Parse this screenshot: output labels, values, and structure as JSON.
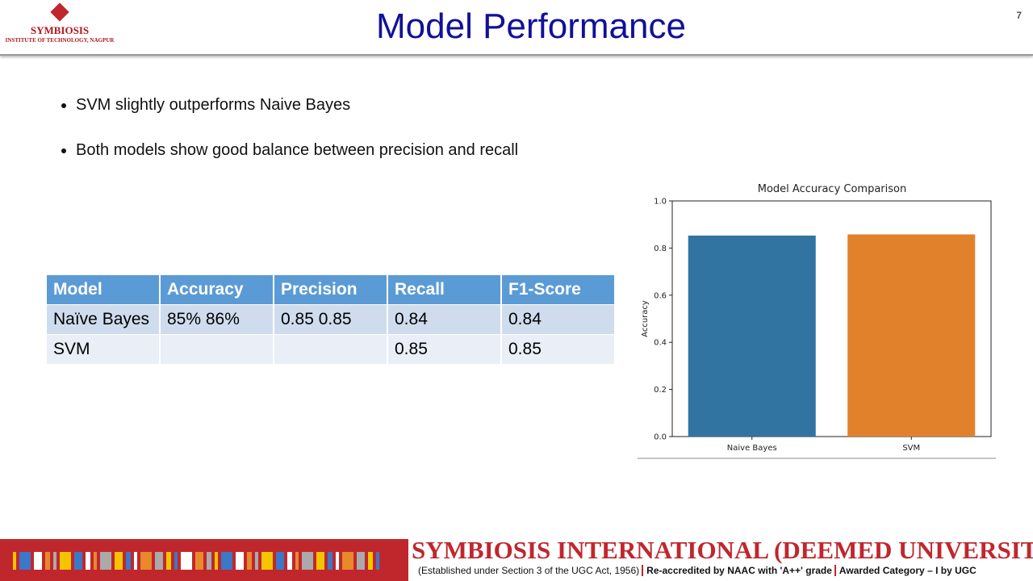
{
  "header": {
    "title": "Model Performance",
    "page_number": "7",
    "logo": {
      "name": "SYMBIOSIS",
      "subtitle": "INSTITUTE OF TECHNOLOGY, NAGPUR"
    }
  },
  "bullets": [
    "SVM slightly outperforms Naive Bayes",
    "Both models show good balance between precision and recall"
  ],
  "table": {
    "header": [
      "Model",
      "Accuracy",
      "Precision",
      "Recall",
      "F1-Score"
    ],
    "rows": [
      [
        "Naïve Bayes",
        "85% 86%",
        "0.85 0.85",
        "0.84",
        "0.84"
      ],
      [
        "SVM",
        null,
        null,
        "0.85",
        "0.85"
      ]
    ]
  },
  "chart_data": {
    "type": "bar",
    "title": "Model Accuracy Comparison",
    "y_label": "Accuracy",
    "categories": [
      "Naive Bayes",
      "SVM"
    ],
    "values": [
      0.853,
      0.858
    ],
    "colors": [
      "#3274a1",
      "#e1812c"
    ],
    "ylim": [
      0,
      1
    ],
    "yticks": [
      {
        "value": 0,
        "label": "0.0"
      },
      0.2,
      0.4,
      0.6,
      0.8,
      {
        "value": 1,
        "label": "1.0"
      }
    ]
  },
  "footer": {
    "title": "SYMBIOSIS INTERNATIONAL (DEEMED UNIVERSITY)",
    "notes": [
      "(Established under Section 3 of the UGC Act, 1956)",
      "Re-accredited by NAAC with 'A++' grade",
      "Awarded Category – I by UGC"
    ]
  }
}
